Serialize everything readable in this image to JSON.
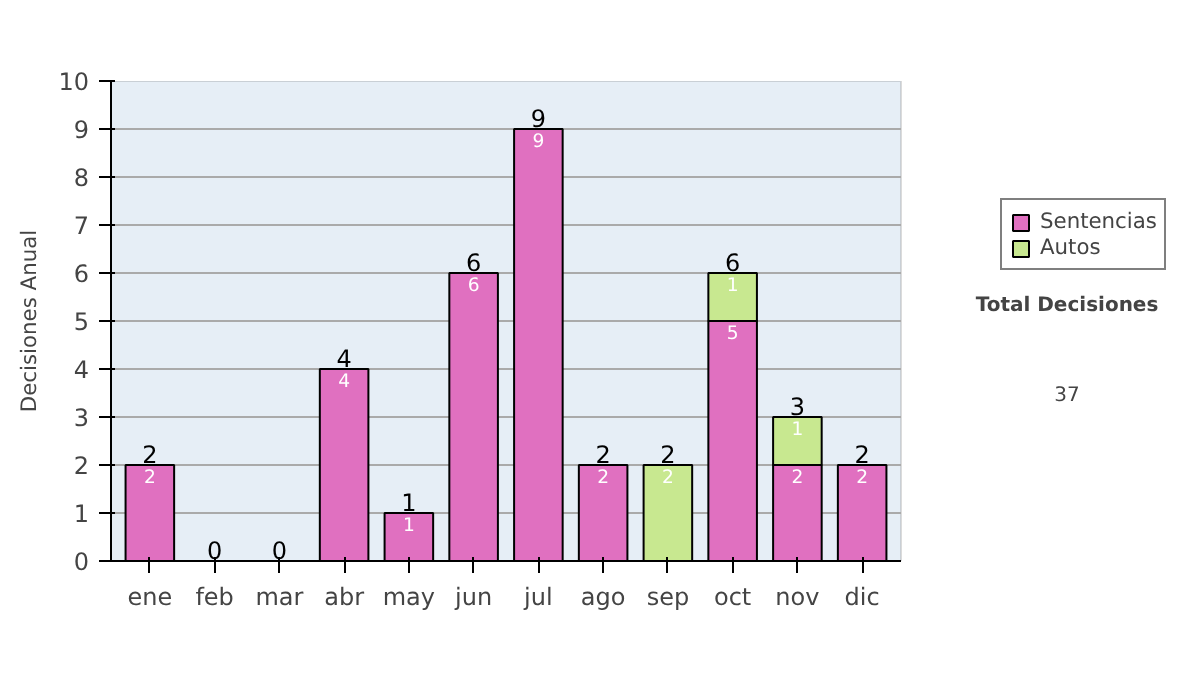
{
  "chart_data": {
    "type": "bar",
    "stacked": true,
    "ylabel": "Decisiones Anual",
    "categories": [
      "ene",
      "feb",
      "mar",
      "abr",
      "may",
      "jun",
      "jul",
      "ago",
      "sep",
      "oct",
      "nov",
      "dic"
    ],
    "series": [
      {
        "name": "Sentencias",
        "color": "#e070c0",
        "values": [
          2,
          0,
          0,
          4,
          1,
          6,
          9,
          2,
          0,
          5,
          2,
          2
        ],
        "value_labels": [
          "2",
          null,
          null,
          "4",
          "1",
          "6",
          "9",
          "2",
          null,
          "5",
          "2",
          "2"
        ]
      },
      {
        "name": "Autos",
        "color": "#c8e890",
        "values": [
          0,
          0,
          0,
          0,
          0,
          0,
          0,
          0,
          2,
          1,
          1,
          0
        ],
        "value_labels": [
          null,
          null,
          null,
          null,
          null,
          null,
          null,
          null,
          "2",
          "1",
          "1",
          null
        ]
      }
    ],
    "totals": [
      "2",
      "0",
      "0",
      "4",
      "1",
      "6",
      "9",
      "2",
      "2",
      "6",
      "3",
      "2"
    ],
    "ylim": [
      0,
      10
    ],
    "yticks": [
      0,
      1,
      2,
      3,
      4,
      5,
      6,
      7,
      8,
      9,
      10
    ],
    "grid": "y",
    "legend": "right",
    "annotations": [
      "Total Decisiones",
      "37"
    ]
  }
}
